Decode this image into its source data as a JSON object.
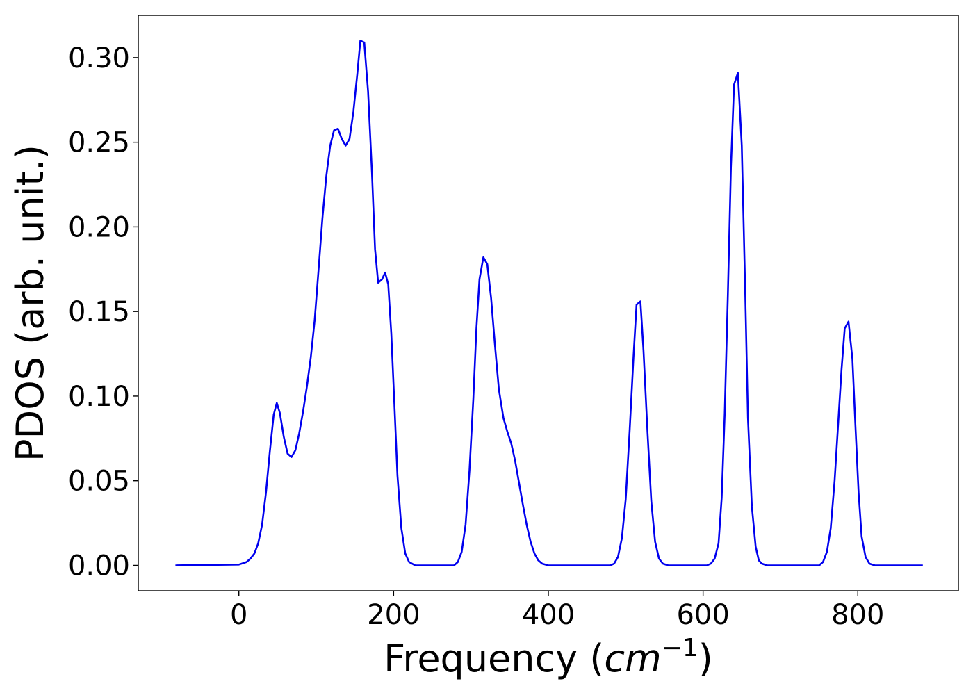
{
  "chart_data": {
    "type": "line",
    "title": "",
    "xlabel_text": "Frequency (",
    "xlabel_math": "cm",
    "xlabel_sup": "−1",
    "xlabel_close": ")",
    "ylabel": "PDOS (arb. unit.)",
    "xlim": [
      -130,
      930
    ],
    "ylim": [
      -0.015,
      0.325
    ],
    "xticks": [
      0,
      200,
      400,
      600,
      800
    ],
    "xtick_labels": [
      "0",
      "200",
      "400",
      "600",
      "800"
    ],
    "yticks": [
      0.0,
      0.05,
      0.1,
      0.15,
      0.2,
      0.25,
      0.3
    ],
    "ytick_labels": [
      "0.00",
      "0.05",
      "0.10",
      "0.15",
      "0.20",
      "0.25",
      "0.30"
    ],
    "grid": false,
    "legend": false,
    "series": [
      {
        "color": "#0000ee",
        "points": [
          [
            -82,
            0.0
          ],
          [
            0,
            0.0005
          ],
          [
            10,
            0.002
          ],
          [
            15,
            0.004
          ],
          [
            20,
            0.007
          ],
          [
            25,
            0.013
          ],
          [
            30,
            0.024
          ],
          [
            35,
            0.043
          ],
          [
            40,
            0.067
          ],
          [
            45,
            0.089
          ],
          [
            49,
            0.096
          ],
          [
            53,
            0.09
          ],
          [
            58,
            0.076
          ],
          [
            63,
            0.066
          ],
          [
            68,
            0.064
          ],
          [
            73,
            0.068
          ],
          [
            78,
            0.078
          ],
          [
            83,
            0.091
          ],
          [
            88,
            0.106
          ],
          [
            93,
            0.123
          ],
          [
            98,
            0.145
          ],
          [
            103,
            0.175
          ],
          [
            108,
            0.205
          ],
          [
            113,
            0.23
          ],
          [
            118,
            0.248
          ],
          [
            123,
            0.257
          ],
          [
            128,
            0.258
          ],
          [
            133,
            0.252
          ],
          [
            138,
            0.248
          ],
          [
            143,
            0.252
          ],
          [
            148,
            0.268
          ],
          [
            153,
            0.29
          ],
          [
            157,
            0.31
          ],
          [
            162,
            0.309
          ],
          [
            167,
            0.28
          ],
          [
            172,
            0.232
          ],
          [
            176,
            0.187
          ],
          [
            180,
            0.167
          ],
          [
            185,
            0.169
          ],
          [
            189,
            0.173
          ],
          [
            193,
            0.166
          ],
          [
            197,
            0.137
          ],
          [
            201,
            0.095
          ],
          [
            205,
            0.053
          ],
          [
            210,
            0.022
          ],
          [
            215,
            0.007
          ],
          [
            220,
            0.002
          ],
          [
            228,
            0.0
          ],
          [
            278,
            0.0
          ],
          [
            283,
            0.002
          ],
          [
            288,
            0.008
          ],
          [
            293,
            0.024
          ],
          [
            298,
            0.056
          ],
          [
            303,
            0.098
          ],
          [
            307,
            0.14
          ],
          [
            311,
            0.169
          ],
          [
            316,
            0.182
          ],
          [
            321,
            0.178
          ],
          [
            326,
            0.158
          ],
          [
            331,
            0.13
          ],
          [
            336,
            0.104
          ],
          [
            342,
            0.087
          ],
          [
            347,
            0.079
          ],
          [
            352,
            0.072
          ],
          [
            357,
            0.062
          ],
          [
            362,
            0.049
          ],
          [
            367,
            0.036
          ],
          [
            372,
            0.024
          ],
          [
            377,
            0.014
          ],
          [
            382,
            0.007
          ],
          [
            387,
            0.003
          ],
          [
            392,
            0.001
          ],
          [
            400,
            0.0
          ],
          [
            480,
            0.0
          ],
          [
            485,
            0.001
          ],
          [
            490,
            0.005
          ],
          [
            495,
            0.016
          ],
          [
            500,
            0.039
          ],
          [
            505,
            0.079
          ],
          [
            510,
            0.123
          ],
          [
            514,
            0.154
          ],
          [
            519,
            0.156
          ],
          [
            523,
            0.127
          ],
          [
            528,
            0.08
          ],
          [
            533,
            0.038
          ],
          [
            538,
            0.014
          ],
          [
            543,
            0.004
          ],
          [
            548,
            0.001
          ],
          [
            555,
            0.0
          ],
          [
            605,
            0.0
          ],
          [
            610,
            0.001
          ],
          [
            615,
            0.004
          ],
          [
            620,
            0.013
          ],
          [
            624,
            0.04
          ],
          [
            628,
            0.09
          ],
          [
            632,
            0.16
          ],
          [
            636,
            0.235
          ],
          [
            640,
            0.284
          ],
          [
            645,
            0.291
          ],
          [
            650,
            0.248
          ],
          [
            654,
            0.17
          ],
          [
            658,
            0.087
          ],
          [
            663,
            0.035
          ],
          [
            668,
            0.011
          ],
          [
            672,
            0.003
          ],
          [
            676,
            0.001
          ],
          [
            683,
            0.0
          ],
          [
            750,
            0.0
          ],
          [
            755,
            0.002
          ],
          [
            760,
            0.008
          ],
          [
            765,
            0.022
          ],
          [
            770,
            0.05
          ],
          [
            775,
            0.087
          ],
          [
            779,
            0.116
          ],
          [
            783,
            0.14
          ],
          [
            788,
            0.144
          ],
          [
            793,
            0.122
          ],
          [
            797,
            0.082
          ],
          [
            801,
            0.043
          ],
          [
            805,
            0.017
          ],
          [
            810,
            0.005
          ],
          [
            815,
            0.001
          ],
          [
            822,
            0.0
          ],
          [
            884,
            0.0
          ]
        ]
      }
    ]
  }
}
